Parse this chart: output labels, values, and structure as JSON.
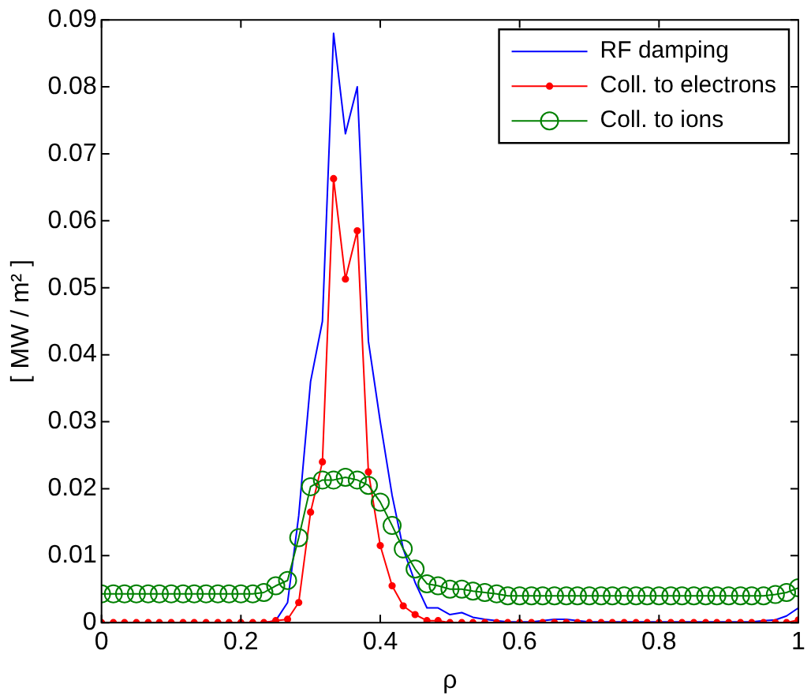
{
  "chart_data": {
    "type": "line",
    "xlabel": "ρ",
    "ylabel": "[ MW / m² ]",
    "x": [
      0,
      0.017,
      0.033,
      0.05,
      0.067,
      0.083,
      0.1,
      0.117,
      0.133,
      0.15,
      0.167,
      0.183,
      0.2,
      0.217,
      0.233,
      0.25,
      0.267,
      0.283,
      0.3,
      0.317,
      0.333,
      0.35,
      0.367,
      0.383,
      0.4,
      0.417,
      0.433,
      0.45,
      0.467,
      0.483,
      0.5,
      0.517,
      0.533,
      0.55,
      0.567,
      0.583,
      0.6,
      0.617,
      0.633,
      0.65,
      0.667,
      0.683,
      0.7,
      0.717,
      0.733,
      0.75,
      0.767,
      0.783,
      0.8,
      0.817,
      0.833,
      0.85,
      0.867,
      0.883,
      0.9,
      0.917,
      0.933,
      0.95,
      0.967,
      0.983,
      1
    ],
    "series": [
      {
        "name": "RF damping",
        "color": "#0000ff",
        "marker": "none",
        "values": [
          null,
          null,
          null,
          null,
          null,
          null,
          null,
          null,
          null,
          null,
          null,
          null,
          null,
          null,
          0,
          0.0003,
          0.003,
          0.016,
          0.036,
          0.045,
          0.088,
          0.073,
          0.08,
          0.042,
          0.03,
          0.019,
          0.011,
          0.006,
          0.0022,
          0.0022,
          0.0012,
          0.0015,
          0.0008,
          0.0005,
          0.0003,
          0.0001,
          0.0001,
          0.0001,
          0.0003,
          0.0005,
          0.0005,
          0.0003,
          0.0001,
          0.0001,
          0.0001,
          0.0001,
          0.0001,
          0.0001,
          0.0001,
          0.0001,
          0.0001,
          0.0001,
          0.0001,
          0.0001,
          0.0001,
          0.0001,
          0.0001,
          0.0003,
          0.0004,
          0.001,
          0.0022
        ]
      },
      {
        "name": "Coll. to electrons",
        "color": "#ff0000",
        "marker": "circle",
        "values": [
          0,
          0,
          0,
          0,
          0,
          0,
          0,
          0,
          0,
          0,
          0,
          0,
          0,
          0,
          0,
          0.0003,
          0.0005,
          0.003,
          0.0165,
          0.024,
          0.0663,
          0.0513,
          0.0585,
          0.0225,
          0.0115,
          0.0055,
          0.0025,
          0.0012,
          0.0003,
          0.0003,
          0,
          0,
          0,
          0,
          0,
          0,
          0,
          0,
          0,
          0,
          0,
          0,
          0,
          0,
          0,
          0,
          0,
          0,
          0,
          0,
          0,
          0,
          0,
          0,
          0,
          0,
          0,
          0,
          0,
          0,
          0.0004
        ]
      },
      {
        "name": "Coll. to ions",
        "color": "#008000",
        "marker": "circle",
        "values": [
          0.0043,
          0.0043,
          0.0043,
          0.0043,
          0.0043,
          0.0043,
          0.0043,
          0.0043,
          0.0043,
          0.0043,
          0.0043,
          0.0043,
          0.0043,
          0.0043,
          0.0045,
          0.0055,
          0.0063,
          0.0127,
          0.0203,
          0.0213,
          0.0213,
          0.0217,
          0.0213,
          0.0205,
          0.018,
          0.0145,
          0.011,
          0.008,
          0.0058,
          0.0055,
          0.005,
          0.005,
          0.0047,
          0.0045,
          0.0043,
          0.004,
          0.004,
          0.004,
          0.004,
          0.004,
          0.004,
          0.004,
          0.004,
          0.004,
          0.004,
          0.004,
          0.004,
          0.004,
          0.004,
          0.004,
          0.004,
          0.004,
          0.004,
          0.004,
          0.004,
          0.004,
          0.004,
          0.004,
          0.0042,
          0.0045,
          0.0052
        ]
      }
    ],
    "xlim": [
      0,
      1
    ],
    "xticks": [
      0,
      0.2,
      0.4,
      0.6,
      0.8,
      1
    ],
    "ylim": [
      0,
      0.09
    ],
    "yticks": [
      0,
      0.01,
      0.02,
      0.03,
      0.04,
      0.05,
      0.06,
      0.07,
      0.08,
      0.09
    ],
    "grid": false,
    "legend": "top right"
  }
}
